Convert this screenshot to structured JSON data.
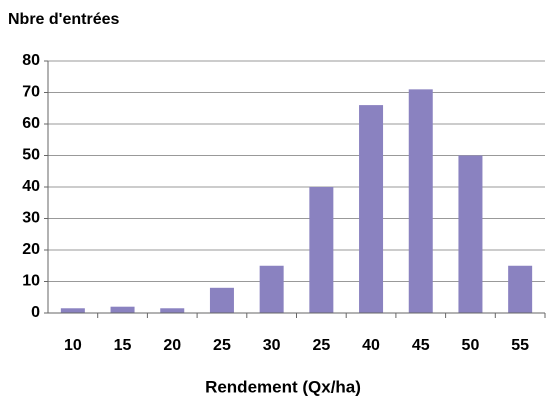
{
  "chart_data": {
    "type": "bar",
    "title": "Nbre d'entrées",
    "x_label": "Rendement (Qx/ha)",
    "categories": [
      "10",
      "15",
      "20",
      "25",
      "30",
      "25",
      "40",
      "45",
      "50",
      "55"
    ],
    "values": [
      1.5,
      2,
      1.5,
      8,
      15,
      40,
      66,
      71,
      50,
      15
    ],
    "color": "#8a82c0",
    "ylim": [
      0,
      80
    ],
    "yticks": [
      0,
      10,
      20,
      30,
      40,
      50,
      60,
      70,
      80
    ],
    "grid": true
  }
}
